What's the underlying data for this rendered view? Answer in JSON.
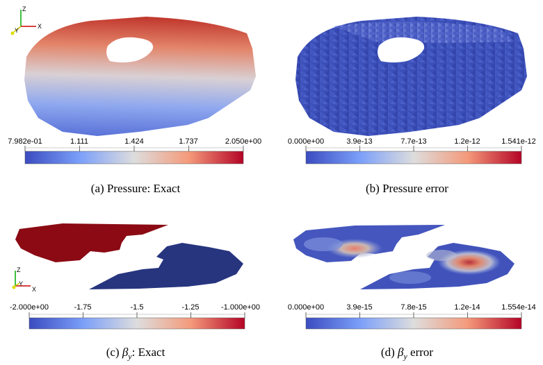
{
  "panels": [
    {
      "id": "a",
      "caption_prefix": "(a)",
      "caption_text": "Pressure: Exact",
      "colorbar": {
        "min_label": "7.982e-01",
        "ticks": [
          "1.111",
          "1.424",
          "1.737"
        ],
        "max_label": "2.050e+00"
      },
      "axes_triad": [
        "Z",
        "Y",
        "X"
      ]
    },
    {
      "id": "b",
      "caption_prefix": "(b)",
      "caption_text": "Pressure error",
      "colorbar": {
        "min_label": "0.000e+00",
        "ticks": [
          "3.9e-13",
          "7.7e-13",
          "1.2e-12"
        ],
        "max_label": "1.541e-12"
      }
    },
    {
      "id": "c",
      "caption_prefix": "(c)",
      "caption_symbol": "β",
      "caption_sub": "y",
      "caption_text": ": Exact",
      "colorbar": {
        "min_label": "-2.000e+00",
        "ticks": [
          "-1.75",
          "-1.5",
          "-1.25"
        ],
        "max_label": "-1.000e+00"
      },
      "axes_triad": [
        "Z",
        "Y",
        "X"
      ]
    },
    {
      "id": "d",
      "caption_prefix": "(d)",
      "caption_symbol": "β",
      "caption_sub": "y",
      "caption_text": " error",
      "colorbar": {
        "min_label": "0.000e+00",
        "ticks": [
          "3.9e-15",
          "7.8e-15",
          "1.2e-14"
        ],
        "max_label": "1.554e-14"
      }
    }
  ],
  "colors": {
    "cool": "#3b4cc0",
    "mid": "#dddddd",
    "warm": "#b40426",
    "dark_red": "#8b0a14",
    "dark_blue": "#27357f"
  }
}
